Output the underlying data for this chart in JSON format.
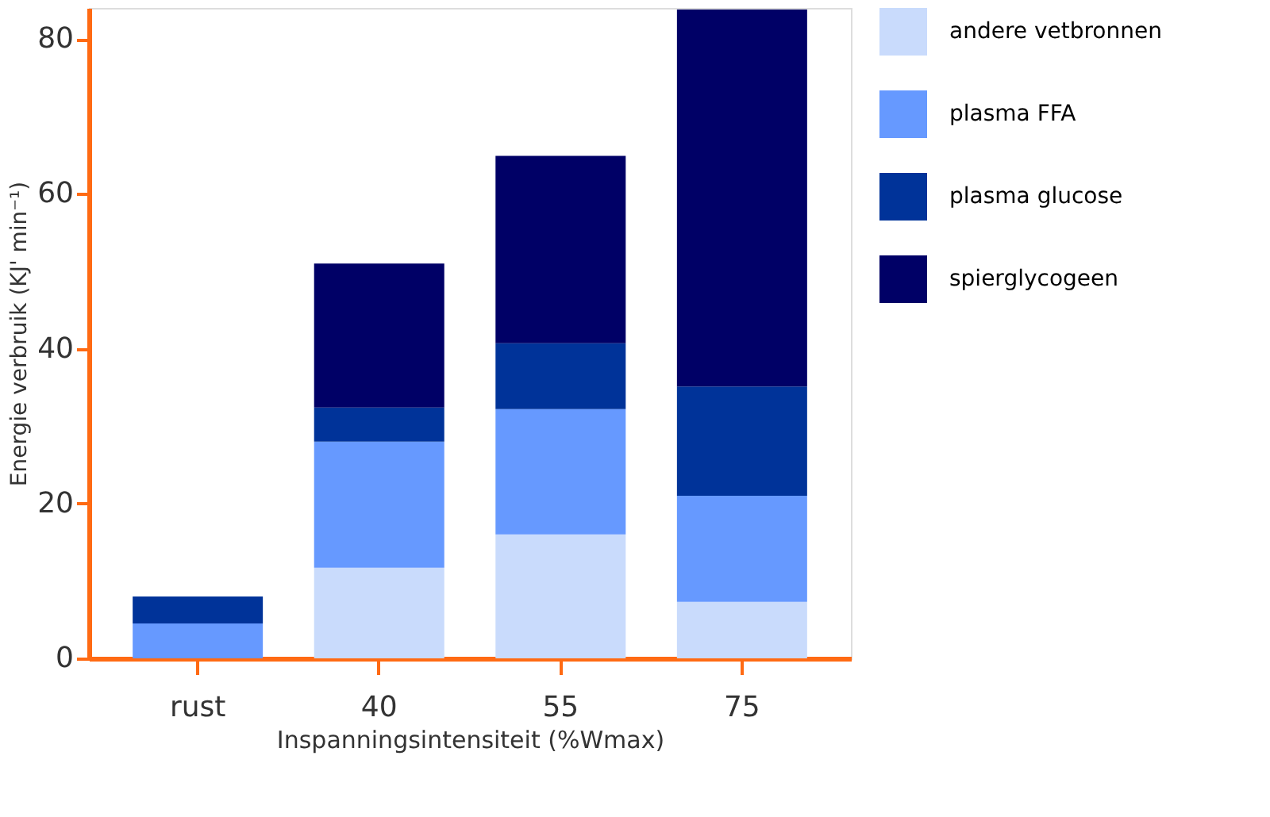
{
  "chart_data": {
    "type": "bar",
    "stacked": true,
    "xlabel": "Inspanningsintensiteit (%Wmax)",
    "ylabel": "Energie verbruik (KJ' min⁻¹)",
    "categories": [
      "rust",
      "40",
      "55",
      "75"
    ],
    "series": [
      {
        "name": "andere vetbronnen",
        "color": "#c9dbfc",
        "values": [
          0,
          11.7,
          16,
          7.3
        ]
      },
      {
        "name": "plasma FFA",
        "color": "#6699ff",
        "values": [
          4.5,
          16.3,
          16.2,
          13.7
        ]
      },
      {
        "name": "plasma glucose",
        "color": "#003399",
        "values": [
          3.5,
          4.4,
          8.5,
          14.1
        ]
      },
      {
        "name": "spierglycogeen",
        "color": "#000066",
        "values": [
          0,
          18.6,
          24.2,
          48.7
        ]
      }
    ],
    "ylim": [
      0,
      84
    ],
    "yticks": [
      0,
      20,
      40,
      60,
      80
    ],
    "grid": false,
    "legend": "top right"
  }
}
